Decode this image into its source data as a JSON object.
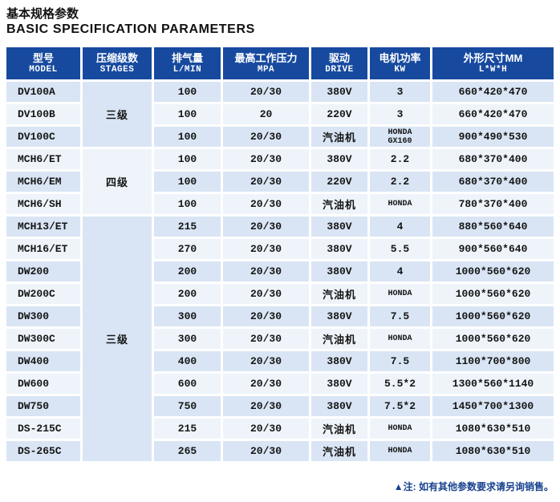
{
  "page": {
    "title_zh": "基本规格参数",
    "title_en": "BASIC SPECIFICATION PARAMETERS",
    "footer_note": "▲注: 如有其他参数要求请另询销售。"
  },
  "colors": {
    "header_bg": "#174a9f",
    "row_light": "#d9e5f4",
    "row_white": "#eef4fa",
    "note_text": "#17418f",
    "header_text": "#ffffff"
  },
  "table": {
    "columns": [
      {
        "zh": "型号",
        "en": "MODEL"
      },
      {
        "zh": "压缩级数",
        "en": "STAGES"
      },
      {
        "zh": "排气量",
        "en": "L/MIN"
      },
      {
        "zh": "最高工作压力",
        "en": "MPA"
      },
      {
        "zh": "驱动",
        "en": "DRIVE"
      },
      {
        "zh": "电机功率",
        "en": "KW"
      },
      {
        "zh": "外形尺寸MM",
        "en": "L*W*H"
      }
    ],
    "stage_groups": [
      {
        "label": "三级",
        "rows": 3
      },
      {
        "label": "四级",
        "rows": 3
      },
      {
        "label": "三级",
        "rows": 11
      }
    ],
    "rows": [
      {
        "model": "DV100A",
        "lmin": "100",
        "mpa": "20/30",
        "drive": "380V",
        "kw": "3",
        "dims": "660*420*470"
      },
      {
        "model": "DV100B",
        "lmin": "100",
        "mpa": "20",
        "drive": "220V",
        "kw": "3",
        "dims": "660*420*470"
      },
      {
        "model": "DV100C",
        "lmin": "100",
        "mpa": "20/30",
        "drive": "汽油机",
        "kw": "HONDA",
        "kw2": "GX160",
        "dims": "900*490*530"
      },
      {
        "model": "MCH6/ET",
        "lmin": "100",
        "mpa": "20/30",
        "drive": "380V",
        "kw": "2.2",
        "dims": "680*370*400"
      },
      {
        "model": "MCH6/EM",
        "lmin": "100",
        "mpa": "20/30",
        "drive": "220V",
        "kw": "2.2",
        "dims": "680*370*400"
      },
      {
        "model": "MCH6/SH",
        "lmin": "100",
        "mpa": "20/30",
        "drive": "汽油机",
        "kw": "HONDA",
        "dims": "780*370*400"
      },
      {
        "model": "MCH13/ET",
        "lmin": "215",
        "mpa": "20/30",
        "drive": "380V",
        "kw": "4",
        "dims": "880*560*640"
      },
      {
        "model": "MCH16/ET",
        "lmin": "270",
        "mpa": "20/30",
        "drive": "380V",
        "kw": "5.5",
        "dims": "900*560*640"
      },
      {
        "model": "DW200",
        "lmin": "200",
        "mpa": "20/30",
        "drive": "380V",
        "kw": "4",
        "dims": "1000*560*620"
      },
      {
        "model": "DW200C",
        "lmin": "200",
        "mpa": "20/30",
        "drive": "汽油机",
        "kw": "HONDA",
        "dims": "1000*560*620"
      },
      {
        "model": "DW300",
        "lmin": "300",
        "mpa": "20/30",
        "drive": "380V",
        "kw": "7.5",
        "dims": "1000*560*620"
      },
      {
        "model": "DW300C",
        "lmin": "300",
        "mpa": "20/30",
        "drive": "汽油机",
        "kw": "HONDA",
        "dims": "1000*560*620"
      },
      {
        "model": "DW400",
        "lmin": "400",
        "mpa": "20/30",
        "drive": "380V",
        "kw": "7.5",
        "dims": "1100*700*800"
      },
      {
        "model": "DW600",
        "lmin": "600",
        "mpa": "20/30",
        "drive": "380V",
        "kw": "5.5*2",
        "dims": "1300*560*1140"
      },
      {
        "model": "DW750",
        "lmin": "750",
        "mpa": "20/30",
        "drive": "380V",
        "kw": "7.5*2",
        "dims": "1450*700*1300"
      },
      {
        "model": "DS-215C",
        "lmin": "215",
        "mpa": "20/30",
        "drive": "汽油机",
        "kw": "HONDA",
        "dims": "1080*630*510"
      },
      {
        "model": "DS-265C",
        "lmin": "265",
        "mpa": "20/30",
        "drive": "汽油机",
        "kw": "HONDA",
        "dims": "1080*630*510"
      }
    ]
  }
}
